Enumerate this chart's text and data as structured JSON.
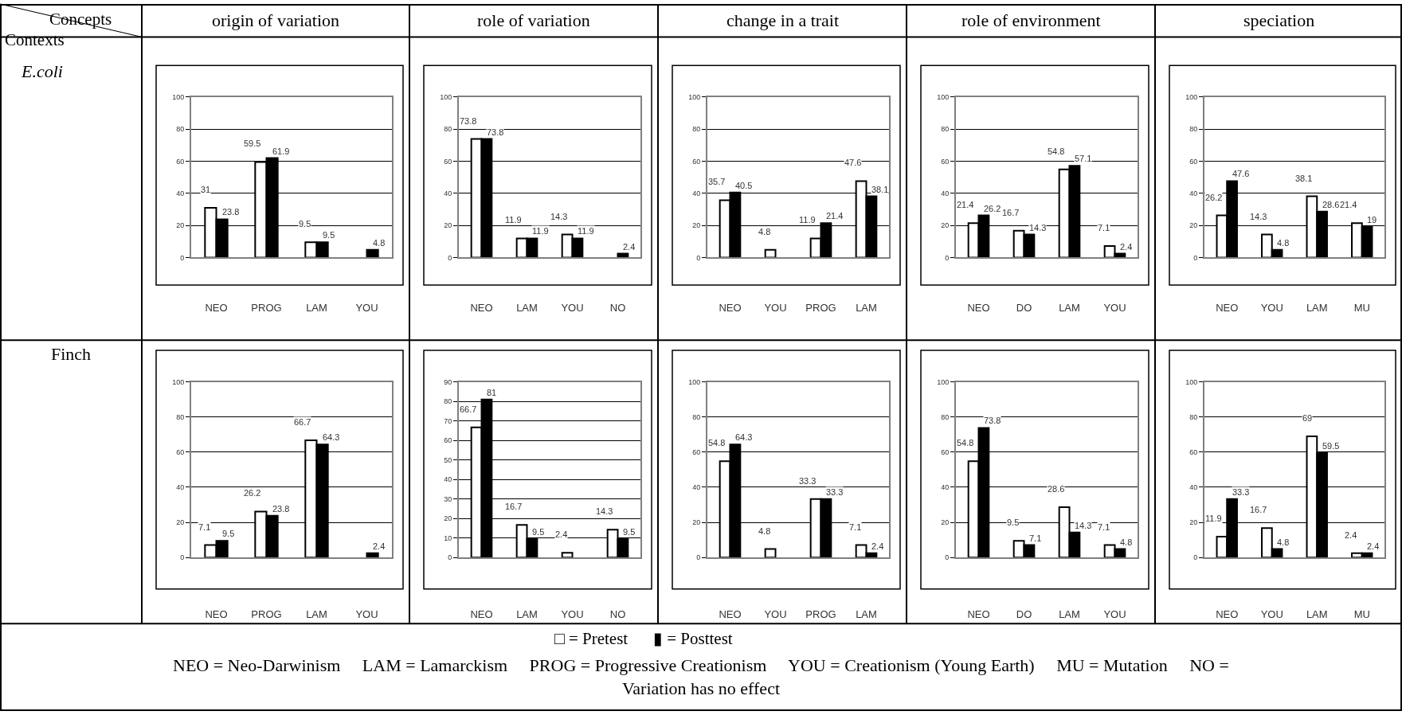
{
  "chart_data": [
    {
      "type": "bar",
      "title": "origin of variation",
      "categories": [
        "NEO",
        "PROG",
        "LAM",
        "YOU"
      ],
      "series": [
        {
          "color": "#ffffff",
          "values": [
            31,
            59.5,
            9.5,
            null
          ]
        },
        {
          "color": "#000000",
          "values": [
            23.8,
            61.9,
            9.5,
            4.8
          ]
        }
      ],
      "ylim": [
        0,
        100
      ],
      "yticks": [
        0,
        20,
        40,
        60,
        80,
        100
      ],
      "grid": "y",
      "data_labels": true,
      "annotations": [
        "Concepts",
        "Contexts",
        "E.coli",
        "□ = Pretest",
        "▮ = Posttest",
        "NEO = Neo-Darwinism     LAM = Lamarckism     PROG = Progressive Creationism     YOU = Creationism (Young Earth)     MU = Mutation     NO = Variation has no effect"
      ]
    },
    {
      "type": "bar",
      "title": "role of variation",
      "categories": [
        "NEO",
        "LAM",
        "YOU",
        "NO"
      ],
      "series": [
        {
          "color": "#ffffff",
          "values": [
            73.8,
            11.9,
            14.3,
            null
          ]
        },
        {
          "color": "#000000",
          "values": [
            73.8,
            11.9,
            11.9,
            2.4
          ]
        }
      ],
      "ylim": [
        0,
        100
      ],
      "yticks": [
        0,
        20,
        40,
        60,
        80,
        100
      ],
      "grid": "y",
      "data_labels": true
    },
    {
      "type": "bar",
      "title": "change in a trait",
      "categories": [
        "NEO",
        "YOU",
        "PROG",
        "LAM"
      ],
      "series": [
        {
          "color": "#ffffff",
          "values": [
            35.7,
            4.8,
            11.9,
            47.6
          ]
        },
        {
          "color": "#000000",
          "values": [
            40.5,
            null,
            21.4,
            38.1
          ]
        }
      ],
      "ylim": [
        0,
        100
      ],
      "yticks": [
        0,
        20,
        40,
        60,
        80,
        100
      ],
      "grid": "y",
      "data_labels": true
    },
    {
      "type": "bar",
      "title": "role of environment",
      "categories": [
        "NEO",
        "DO",
        "LAM",
        "YOU"
      ],
      "series": [
        {
          "color": "#ffffff",
          "values": [
            21.4,
            16.7,
            54.8,
            7.1
          ]
        },
        {
          "color": "#000000",
          "values": [
            26.2,
            14.3,
            57.1,
            2.4
          ]
        }
      ],
      "ylim": [
        0,
        100
      ],
      "yticks": [
        0,
        20,
        40,
        60,
        80,
        100
      ],
      "grid": "y",
      "data_labels": true
    },
    {
      "type": "bar",
      "title": "speciation",
      "categories": [
        "NEO",
        "YOU",
        "LAM",
        "MU"
      ],
      "series": [
        {
          "color": "#ffffff",
          "values": [
            26.2,
            14.3,
            38.1,
            21.4
          ]
        },
        {
          "color": "#000000",
          "values": [
            47.6,
            4.8,
            28.6,
            19
          ]
        }
      ],
      "ylim": [
        0,
        100
      ],
      "yticks": [
        0,
        20,
        40,
        60,
        80,
        100
      ],
      "grid": "y",
      "data_labels": true
    },
    {
      "type": "bar",
      "categories": [
        "NEO",
        "PROG",
        "LAM",
        "YOU"
      ],
      "series": [
        {
          "color": "#ffffff",
          "values": [
            7.1,
            26.2,
            66.7,
            null
          ]
        },
        {
          "color": "#000000",
          "values": [
            9.5,
            23.8,
            64.3,
            2.4
          ]
        }
      ],
      "ylim": [
        0,
        100
      ],
      "yticks": [
        0,
        20,
        40,
        60,
        80,
        100
      ],
      "grid": "y",
      "data_labels": true,
      "annotations": [
        "Finch"
      ]
    },
    {
      "type": "bar",
      "categories": [
        "NEO",
        "LAM",
        "YOU",
        "NO"
      ],
      "series": [
        {
          "color": "#ffffff",
          "values": [
            66.7,
            16.7,
            2.4,
            14.3
          ]
        },
        {
          "color": "#000000",
          "values": [
            81,
            9.5,
            null,
            9.5
          ]
        }
      ],
      "ylim": [
        0,
        90
      ],
      "yticks": [
        0,
        10,
        20,
        30,
        40,
        50,
        60,
        70,
        80,
        90
      ],
      "grid": "y",
      "data_labels": true
    },
    {
      "type": "bar",
      "categories": [
        "NEO",
        "YOU",
        "PROG",
        "LAM"
      ],
      "series": [
        {
          "color": "#ffffff",
          "values": [
            54.8,
            4.8,
            33.3,
            7.1
          ]
        },
        {
          "color": "#000000",
          "values": [
            64.3,
            null,
            33.3,
            2.4
          ]
        }
      ],
      "ylim": [
        0,
        100
      ],
      "yticks": [
        0,
        20,
        40,
        60,
        80,
        100
      ],
      "grid": "y",
      "data_labels": true
    },
    {
      "type": "bar",
      "categories": [
        "NEO",
        "DO",
        "LAM",
        "YOU"
      ],
      "series": [
        {
          "color": "#ffffff",
          "values": [
            54.8,
            9.5,
            28.6,
            7.1
          ]
        },
        {
          "color": "#000000",
          "values": [
            73.8,
            7.1,
            14.3,
            4.8
          ]
        }
      ],
      "ylim": [
        0,
        100
      ],
      "yticks": [
        0,
        20,
        40,
        60,
        80,
        100
      ],
      "grid": "y",
      "data_labels": true
    },
    {
      "type": "bar",
      "categories": [
        "NEO",
        "YOU",
        "LAM",
        "MU"
      ],
      "series": [
        {
          "color": "#ffffff",
          "values": [
            11.9,
            16.7,
            69,
            2.4
          ]
        },
        {
          "color": "#000000",
          "values": [
            33.3,
            4.8,
            59.5,
            2.4
          ]
        }
      ],
      "ylim": [
        0,
        100
      ],
      "yticks": [
        0,
        20,
        40,
        60,
        80,
        100
      ],
      "grid": "y",
      "data_labels": true
    }
  ]
}
